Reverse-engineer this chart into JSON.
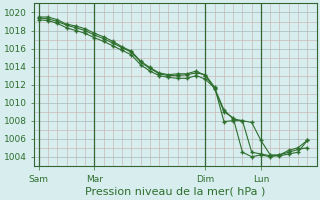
{
  "bg_color": "#d8eeee",
  "plot_bg_color": "#d8eeee",
  "grid_minor_color": "#c8b8b8",
  "grid_major_color": "#a8b8b8",
  "line_color": "#2d6e2d",
  "marker_color": "#2d6e2d",
  "vline_color": "#336633",
  "axis_color": "#336633",
  "label_color": "#2d6e2d",
  "ylim": [
    1003.0,
    1021.0
  ],
  "yticks": [
    1004,
    1006,
    1008,
    1010,
    1012,
    1014,
    1016,
    1018,
    1020
  ],
  "xlabel": "Pression niveau de la mer( hPa )",
  "xlabel_fontsize": 8,
  "tick_fontsize": 6.5,
  "xtick_labels": [
    "Sam",
    "Mar",
    "Dim",
    "Lun"
  ],
  "xtick_positions": [
    0,
    36,
    108,
    144
  ],
  "vline_positions": [
    0,
    36,
    108,
    144
  ],
  "xlim": [
    -3,
    180
  ],
  "lines": [
    [
      0,
      1019.2,
      6,
      1019.1,
      12,
      1018.8,
      18,
      1018.3,
      24,
      1018.0,
      30,
      1017.7,
      36,
      1017.2,
      42,
      1016.8,
      48,
      1016.3,
      54,
      1015.8,
      60,
      1015.3,
      66,
      1014.2,
      72,
      1013.5,
      78,
      1013.0,
      84,
      1012.8,
      90,
      1012.7,
      96,
      1012.7,
      102,
      1013.0,
      108,
      1012.6,
      114,
      1011.6,
      120,
      1009.2,
      126,
      1008.2,
      132,
      1008.0,
      138,
      1007.8,
      144,
      1005.8,
      150,
      1004.2,
      156,
      1004.2,
      162,
      1004.5,
      168,
      1004.8,
      174,
      1005.0
    ],
    [
      0,
      1019.4,
      6,
      1019.3,
      12,
      1019.0,
      18,
      1018.6,
      24,
      1018.3,
      30,
      1018.0,
      36,
      1017.5,
      42,
      1017.1,
      48,
      1016.6,
      54,
      1016.1,
      60,
      1015.6,
      66,
      1014.5,
      72,
      1013.8,
      78,
      1013.2,
      84,
      1013.0,
      90,
      1013.0,
      96,
      1013.1,
      102,
      1013.3,
      108,
      1013.1,
      114,
      1011.7,
      120,
      1007.9,
      126,
      1008.0,
      132,
      1008.0,
      138,
      1004.5,
      144,
      1004.3,
      150,
      1004.1,
      156,
      1004.1,
      162,
      1004.3,
      168,
      1004.5,
      174,
      1005.8
    ],
    [
      0,
      1019.5,
      6,
      1019.5,
      12,
      1019.2,
      18,
      1018.7,
      24,
      1018.5,
      30,
      1018.2,
      36,
      1017.7,
      42,
      1017.3,
      48,
      1016.8,
      54,
      1016.2,
      60,
      1015.7,
      66,
      1014.6,
      72,
      1013.9,
      78,
      1013.3,
      84,
      1013.1,
      90,
      1013.2,
      96,
      1013.2,
      102,
      1013.5,
      108,
      1013.0,
      114,
      1011.5,
      120,
      1009.0,
      126,
      1008.3,
      132,
      1004.5,
      138,
      1004.0,
      144,
      1004.2,
      150,
      1004.0,
      156,
      1004.2,
      162,
      1004.7,
      168,
      1005.0,
      174,
      1005.8
    ]
  ]
}
